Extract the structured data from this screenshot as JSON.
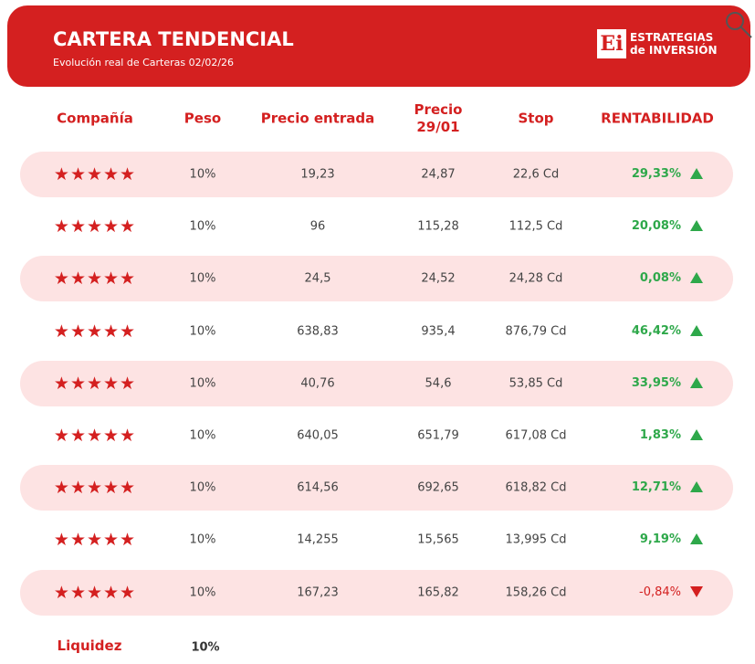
{
  "header": {
    "title": "CARTERA TENDENCIAL",
    "subtitle": "Evolución real de Carteras 02/02/26",
    "logo": {
      "mark": "Ei",
      "line1": "ESTRATEGIAS",
      "line2": "de INVERSIÓN"
    }
  },
  "table": {
    "columns": [
      "Compañía",
      "Peso",
      "Precio entrada",
      [
        "Precio",
        "29/01"
      ],
      "Stop",
      "RENTABILIDAD"
    ],
    "rows": [
      {
        "company": "★★★★★",
        "weight": "10%",
        "entry": "19,23",
        "price": "24,87",
        "stop": "22,6 Cd",
        "return": "29,33%",
        "trend": "up"
      },
      {
        "company": "★★★★★",
        "weight": "10%",
        "entry": "96",
        "price": "115,28",
        "stop": "112,5 Cd",
        "return": "20,08%",
        "trend": "up"
      },
      {
        "company": "★★★★★",
        "weight": "10%",
        "entry": "24,5",
        "price": "24,52",
        "stop": "24,28 Cd",
        "return": "0,08%",
        "trend": "up"
      },
      {
        "company": "★★★★★",
        "weight": "10%",
        "entry": "638,83",
        "price": "935,4",
        "stop": "876,79 Cd",
        "return": "46,42%",
        "trend": "up"
      },
      {
        "company": "★★★★★",
        "weight": "10%",
        "entry": "40,76",
        "price": "54,6",
        "stop": "53,85 Cd",
        "return": "33,95%",
        "trend": "up"
      },
      {
        "company": "★★★★★",
        "weight": "10%",
        "entry": "640,05",
        "price": "651,79",
        "stop": "617,08 Cd",
        "return": "1,83%",
        "trend": "up"
      },
      {
        "company": "★★★★★",
        "weight": "10%",
        "entry": "614,56",
        "price": "692,65",
        "stop": "618,82 Cd",
        "return": "12,71%",
        "trend": "up"
      },
      {
        "company": "★★★★★",
        "weight": "10%",
        "entry": "14,255",
        "price": "15,565",
        "stop": "13,995 Cd",
        "return": "9,19%",
        "trend": "up"
      },
      {
        "company": "★★★★★",
        "weight": "10%",
        "entry": "167,23",
        "price": "165,82",
        "stop": "158,26 Cd",
        "return": "-0,84%",
        "trend": "down"
      }
    ],
    "footer": {
      "label": "Liquidez",
      "weight": "10%"
    }
  }
}
